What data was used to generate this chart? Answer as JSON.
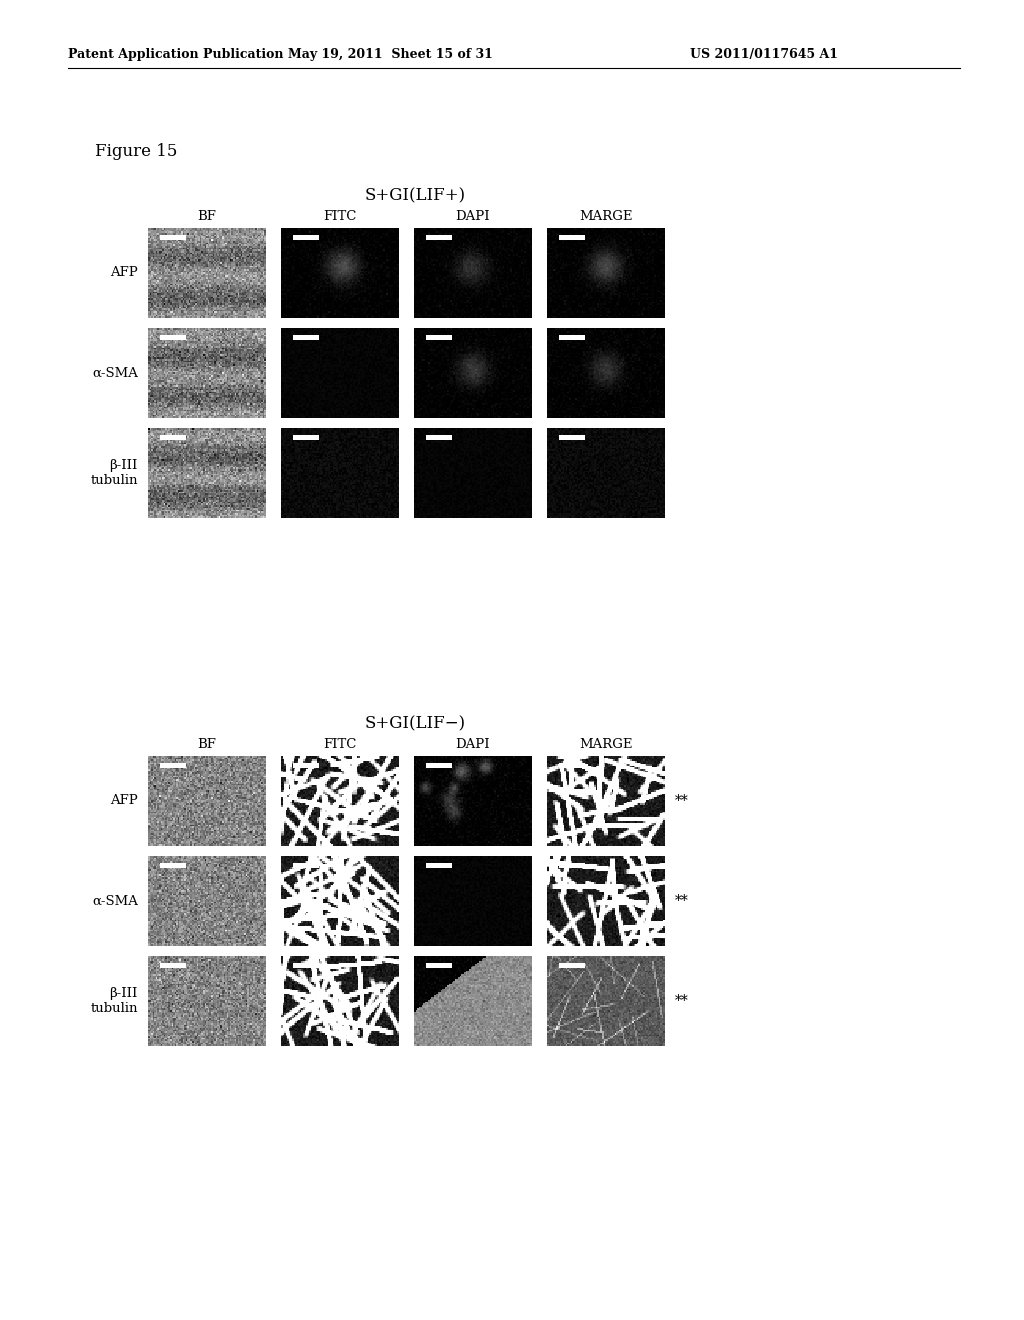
{
  "page_header_left": "Patent Application Publication",
  "page_header_mid": "May 19, 2011  Sheet 15 of 31",
  "page_header_right": "US 2011/0117645 A1",
  "figure_label": "Figure 15",
  "panel1_title": "S+GI(LIF+)",
  "panel2_title": "S+GI(LIF−)",
  "col_labels": [
    "BF",
    "FITC",
    "DAPI",
    "MARGE"
  ],
  "row_labels_p1": [
    "AFP",
    "α-SMA",
    "β-III\ntubulin"
  ],
  "row_labels_p2": [
    "AFP",
    "α-SMA",
    "β-III\ntubulin"
  ],
  "double_star": "**",
  "bg_color": "#ffffff",
  "header_line_color": "#000000",
  "text_color": "#000000",
  "img_border_color": "#888888",
  "scale_bar_color": "#ffffff",
  "fig_width": 10.24,
  "fig_height": 13.2,
  "dpi": 100
}
